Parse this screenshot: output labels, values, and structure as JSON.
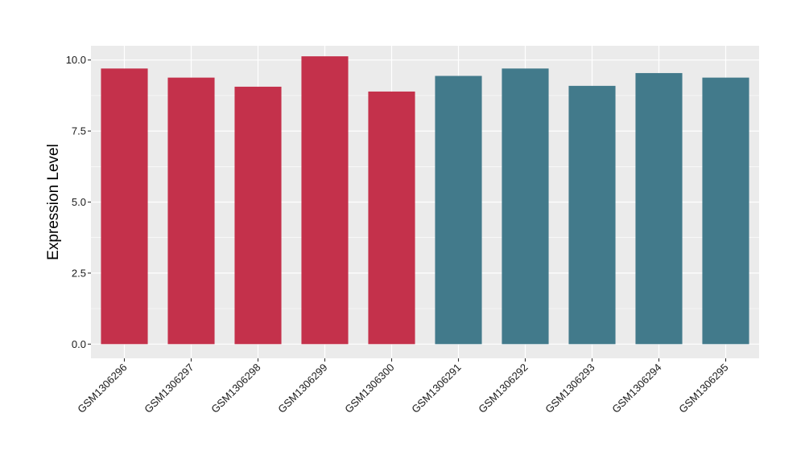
{
  "chart_data": {
    "type": "bar",
    "title": "",
    "xlabel": "",
    "ylabel": "Expression Level",
    "ylim": [
      -0.5,
      10.5
    ],
    "yticks": [
      0.0,
      2.5,
      5.0,
      7.5,
      10.0
    ],
    "ytick_labels": [
      "0.0",
      "2.5",
      "5.0",
      "7.5",
      "10.0"
    ],
    "grid": true,
    "legend": "none",
    "categories": [
      "GSM1306296",
      "GSM1306297",
      "GSM1306298",
      "GSM1306299",
      "GSM1306300",
      "GSM1306291",
      "GSM1306292",
      "GSM1306293",
      "GSM1306294",
      "GSM1306295"
    ],
    "values": [
      9.7,
      9.38,
      9.06,
      10.13,
      8.89,
      9.44,
      9.7,
      9.09,
      9.54,
      9.38
    ],
    "bar_colors": [
      "#c4314b",
      "#c4314b",
      "#c4314b",
      "#c4314b",
      "#c4314b",
      "#427a8b",
      "#427a8b",
      "#427a8b",
      "#427a8b",
      "#427a8b"
    ],
    "panel_background": "#ebebeb",
    "grid_color": "#ffffff"
  }
}
